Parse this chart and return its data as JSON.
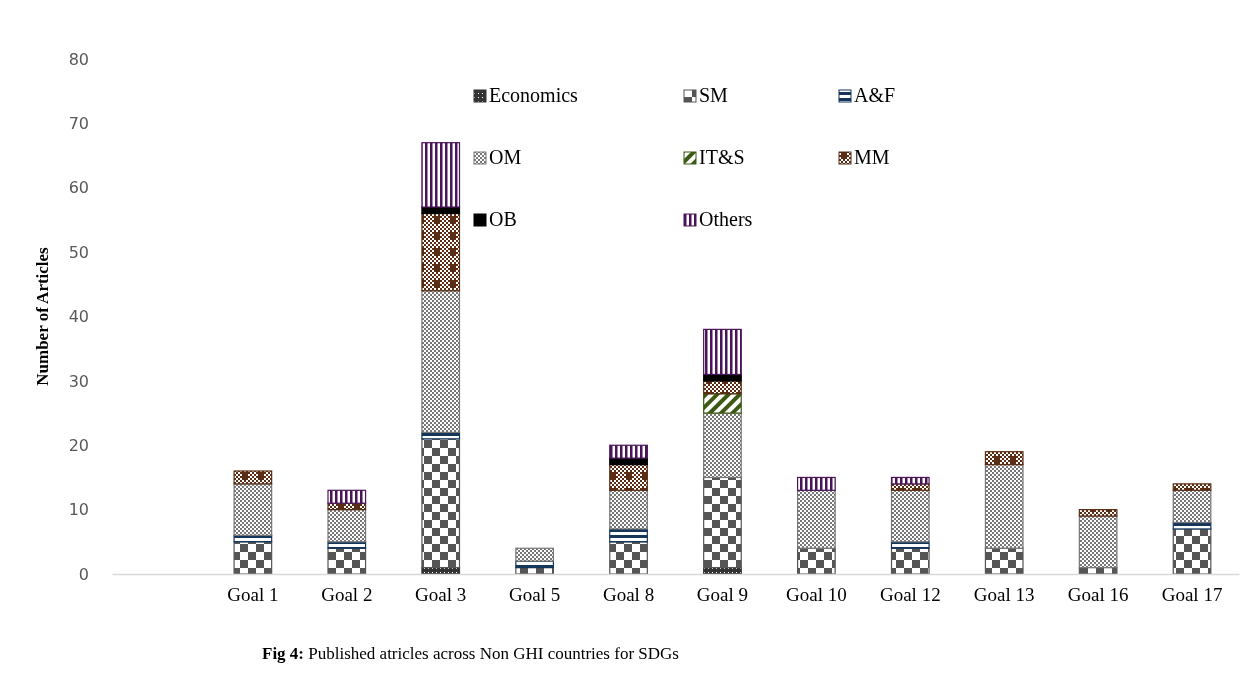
{
  "chart_data": {
    "type": "bar",
    "stacked": true,
    "title": "Fig 4:",
    "subtitle": "Published atricles across Non GHI countries for SDGs",
    "ylabel": "Number of Articles",
    "categories": [
      null,
      "Goal 1",
      "Goal 2",
      "Goal 3",
      "Goal 5",
      "Goal 8",
      "Goal 9",
      "Goal 10",
      "Goal 12",
      "Goal 13",
      "Goal 16",
      "Goal 17"
    ],
    "series": [
      {
        "name": "Economics",
        "color": "#333333",
        "values": [
          null,
          0,
          0,
          1,
          0,
          0,
          1,
          0,
          0,
          0,
          0,
          0
        ]
      },
      {
        "name": "SM",
        "color": "#555555",
        "values": [
          null,
          5,
          4,
          20,
          1,
          5,
          14,
          4,
          4,
          4,
          1,
          7
        ]
      },
      {
        "name": "A&F",
        "color": "#14365a",
        "values": [
          null,
          1,
          1,
          1,
          1,
          2,
          0,
          0,
          1,
          0,
          0,
          1
        ]
      },
      {
        "name": "OM",
        "color": "#777777",
        "values": [
          null,
          8,
          5,
          22,
          2,
          6,
          10,
          9,
          8,
          13,
          8,
          5
        ]
      },
      {
        "name": "IT&S",
        "color": "#3d5a14",
        "values": [
          null,
          0,
          0,
          0,
          0,
          0,
          3,
          0,
          0,
          0,
          0,
          0
        ]
      },
      {
        "name": "MM",
        "color": "#5a2d14",
        "values": [
          null,
          2,
          1,
          12,
          0,
          4,
          2,
          0,
          1,
          2,
          1,
          1
        ]
      },
      {
        "name": "OB",
        "color": "#000000",
        "values": [
          null,
          0,
          0,
          1,
          0,
          1,
          1,
          0,
          0,
          0,
          0,
          0
        ]
      },
      {
        "name": "Others",
        "color": "#4a1459",
        "values": [
          null,
          0,
          2,
          10,
          0,
          2,
          7,
          2,
          1,
          0,
          0,
          0
        ]
      }
    ],
    "ylim": [
      0,
      80
    ],
    "yticks": [
      0,
      10,
      20,
      30,
      40,
      50,
      60,
      70,
      80
    ],
    "grid": false,
    "legend": "top right"
  }
}
